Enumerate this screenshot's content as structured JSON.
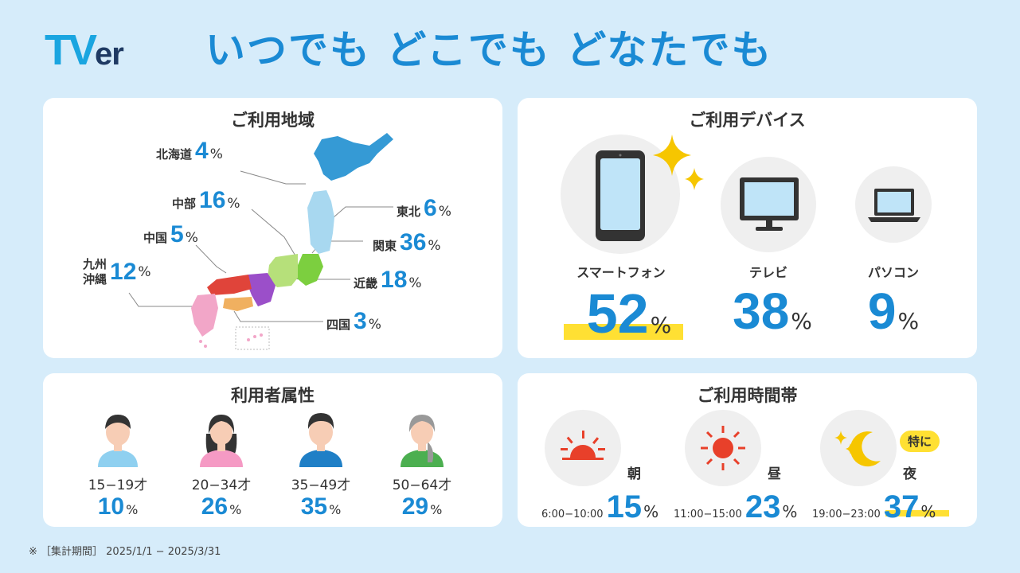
{
  "header": {
    "logo_t": "TV",
    "logo_er": "er",
    "headline": "いつでも どこでも どなたでも"
  },
  "region": {
    "title": "ご利用地域",
    "items": [
      {
        "name": "北海道",
        "value": "4",
        "unit": "%"
      },
      {
        "name": "東北",
        "value": "6",
        "unit": "%"
      },
      {
        "name": "中部",
        "value": "16",
        "unit": "%"
      },
      {
        "name": "関東",
        "value": "36",
        "unit": "%"
      },
      {
        "name": "中国",
        "value": "5",
        "unit": "%"
      },
      {
        "name": "近畿",
        "value": "18",
        "unit": "%"
      },
      {
        "name": "九州",
        "name2": "沖縄",
        "value": "12",
        "unit": "%"
      },
      {
        "name": "四国",
        "value": "3",
        "unit": "%"
      }
    ]
  },
  "device": {
    "title": "ご利用デバイス",
    "items": [
      {
        "name": "スマートフォン",
        "value": "52",
        "unit": "%",
        "icon": "smartphone-icon"
      },
      {
        "name": "テレビ",
        "value": "38",
        "unit": "%",
        "icon": "tv-icon"
      },
      {
        "name": "パソコン",
        "value": "9",
        "unit": "%",
        "icon": "laptop-icon"
      }
    ]
  },
  "attributes": {
    "title": "利用者属性",
    "items": [
      {
        "age": "15−19才",
        "value": "10",
        "unit": "%"
      },
      {
        "age": "20−34才",
        "value": "26",
        "unit": "%"
      },
      {
        "age": "35−49才",
        "value": "35",
        "unit": "%"
      },
      {
        "age": "50−64才",
        "value": "29",
        "unit": "%"
      }
    ]
  },
  "timeband": {
    "title": "ご利用時間帯",
    "badge": "特に",
    "items": [
      {
        "label": "朝",
        "range": "6:00−10:00",
        "value": "15",
        "unit": "%",
        "icon": "sunrise-icon"
      },
      {
        "label": "昼",
        "range": "11:00−15:00",
        "value": "23",
        "unit": "%",
        "icon": "sun-icon"
      },
      {
        "label": "夜",
        "range": "19:00−23:00",
        "value": "37",
        "unit": "%",
        "icon": "moon-icon"
      }
    ]
  },
  "footnote": "※ ［集計期間］ 2025/1/1 − 2025/3/31",
  "colors": {
    "accent": "#1a8ad4",
    "background": "#d6ecfa",
    "highlight": "#ffe033",
    "hokkaido": "#1f8fd0",
    "tohoku": "#a8d8f0",
    "kanto": "#7ccf3f",
    "chubu": "#b6e07a",
    "kinki": "#9b4fc9",
    "chugoku": "#e0443a",
    "shikoku": "#f0b060",
    "kyushu": "#f2a6c8"
  }
}
